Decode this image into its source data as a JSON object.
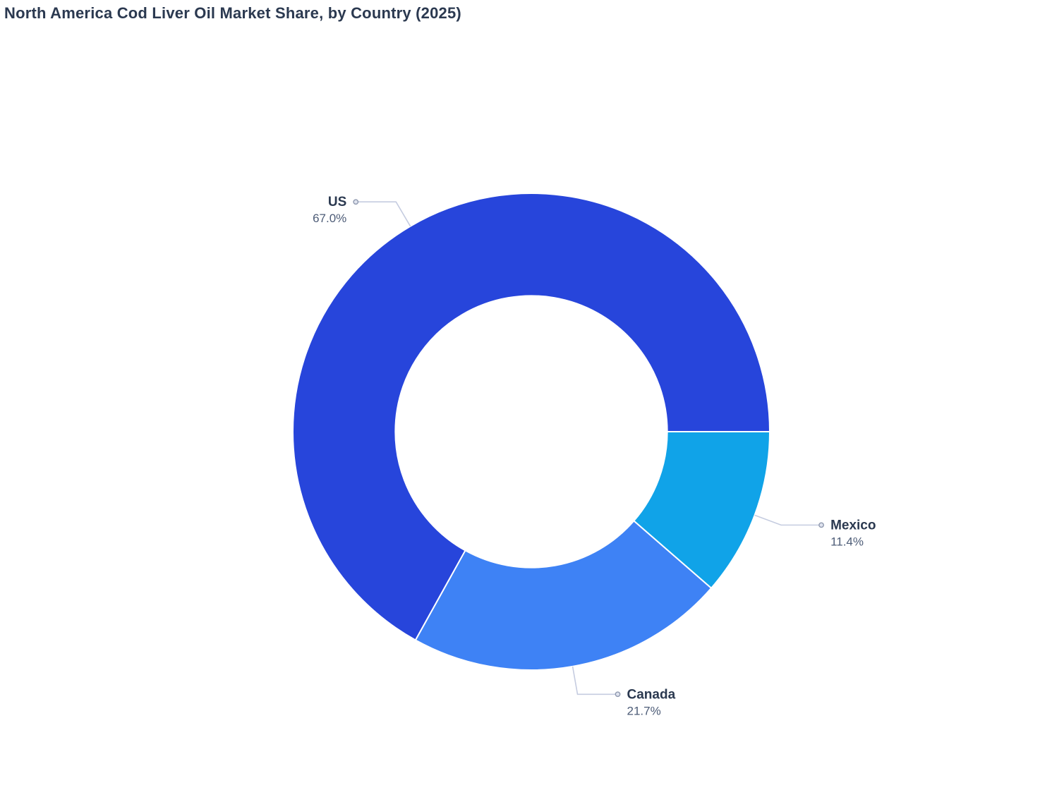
{
  "title": "North America Cod Liver Oil Market Share, by Country (2025)",
  "chart_data": {
    "type": "pie",
    "subtype": "donut",
    "title": "North America Cod Liver Oil Market Share, by Country (2025)",
    "categories": [
      "US",
      "Canada",
      "Mexico"
    ],
    "values": [
      67.0,
      21.7,
      11.4
    ],
    "pct_labels": [
      "67.0%",
      "21.7%",
      "11.4%"
    ],
    "slice_colors": [
      "#2745DB",
      "#3E82F5",
      "#10A3E8"
    ],
    "hole_ratio": 0.57,
    "start_angle_deg": 0,
    "direction": "counterclockwise",
    "labels": "outside with leader lines",
    "legend_position": "none"
  },
  "style": {
    "title_color": "#2b3950",
    "label_color": "#2b3950",
    "pct_color": "#4d5c77",
    "leader_line_color": "#c5cce0",
    "dot_fill": "#dfe3ee",
    "dot_stroke": "#8f99af",
    "slice_border": "#ffffff",
    "background": "#ffffff"
  }
}
